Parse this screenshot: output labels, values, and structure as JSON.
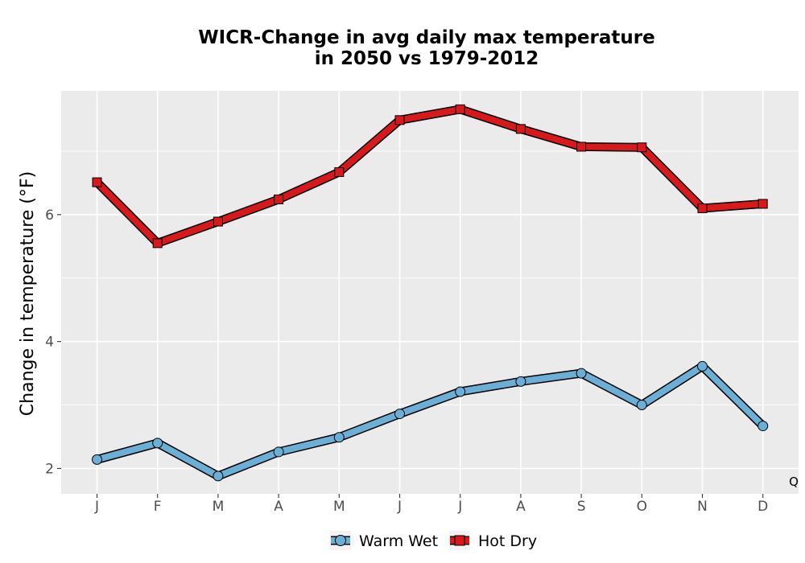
{
  "chart_data": {
    "type": "line",
    "title_lines": [
      "WICR-Change in avg daily max temperature",
      "in 2050 vs 1979-2012"
    ],
    "xlabel": "",
    "ylabel": "Change in temperature (°F)",
    "categories": [
      "J",
      "F",
      "M",
      "A",
      "M",
      "J",
      "J",
      "A",
      "S",
      "O",
      "N",
      "D"
    ],
    "y_ticks": [
      2,
      4,
      6
    ],
    "y_tick_labels": [
      "2",
      "4",
      "6"
    ],
    "ylim": [
      1.6,
      7.95
    ],
    "grid": true,
    "legend_position": "bottom",
    "corner_note": "Q",
    "series": [
      {
        "name": "Warm Wet",
        "marker": "circle",
        "color": "#6baed6",
        "values": [
          2.14,
          2.4,
          1.88,
          2.26,
          2.49,
          2.86,
          3.21,
          3.37,
          3.5,
          3.0,
          3.61,
          2.67
        ]
      },
      {
        "name": "Hot Dry",
        "marker": "square",
        "color": "#d7191c",
        "values": [
          6.51,
          5.55,
          5.89,
          6.24,
          6.67,
          7.49,
          7.66,
          7.35,
          7.07,
          7.06,
          6.1,
          6.17
        ]
      }
    ]
  }
}
